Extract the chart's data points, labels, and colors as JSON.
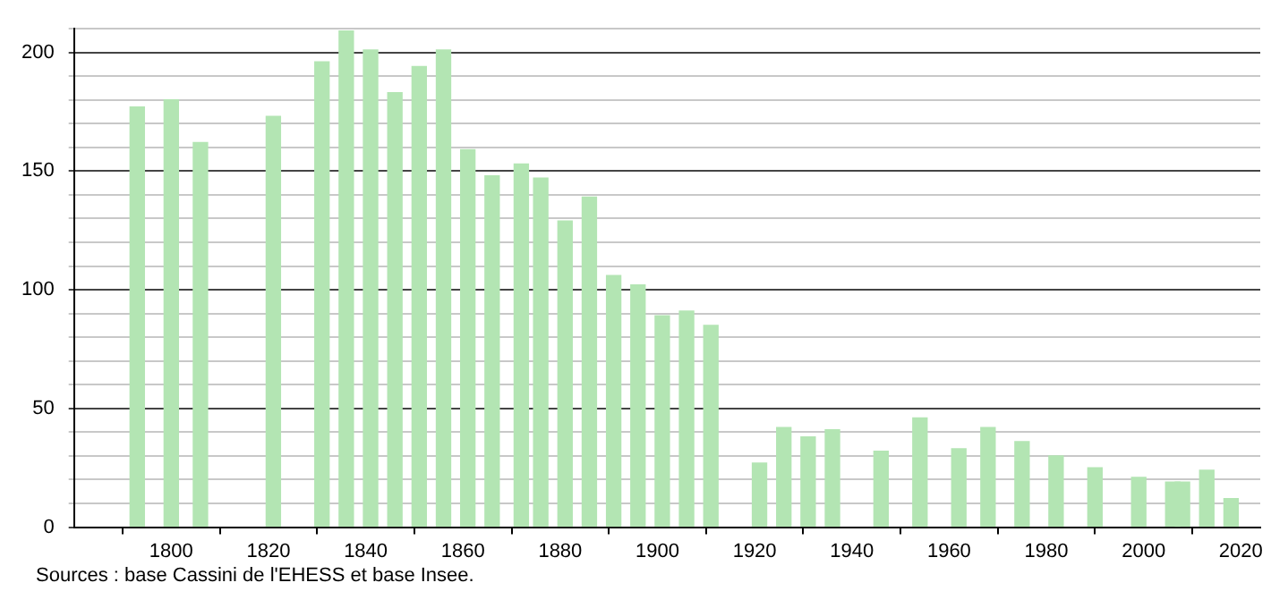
{
  "chart_data": {
    "type": "bar",
    "x": [
      1793,
      1800,
      1806,
      1821,
      1831,
      1836,
      1841,
      1846,
      1851,
      1856,
      1861,
      1866,
      1872,
      1876,
      1881,
      1886,
      1891,
      1896,
      1901,
      1906,
      1911,
      1921,
      1926,
      1931,
      1936,
      1946,
      1954,
      1962,
      1968,
      1975,
      1982,
      1990,
      1999,
      2006,
      2008,
      2013,
      2018
    ],
    "values": [
      177,
      180,
      162,
      173,
      196,
      209,
      201,
      183,
      194,
      201,
      159,
      148,
      153,
      147,
      129,
      139,
      106,
      102,
      89,
      91,
      85,
      27,
      42,
      38,
      41,
      32,
      46,
      33,
      42,
      36,
      30,
      25,
      21,
      19,
      19,
      24,
      12
    ],
    "color": "#b3e5b3",
    "xlim": [
      1780,
      2024
    ],
    "xticks": [
      1800,
      1820,
      1840,
      1860,
      1880,
      1900,
      1920,
      1940,
      1960,
      1980,
      2000,
      2020
    ],
    "ylim": [
      0,
      210
    ],
    "yticks": [
      0,
      {
        "value": 10,
        "label": null
      },
      {
        "value": 20,
        "label": null
      },
      {
        "value": 30,
        "label": null
      },
      {
        "value": 40,
        "label": null
      },
      50,
      {
        "value": 60,
        "label": null
      },
      {
        "value": 70,
        "label": null
      },
      {
        "value": 80,
        "label": null
      },
      {
        "value": 90,
        "label": null
      },
      100,
      {
        "value": 110,
        "label": null
      },
      {
        "value": 120,
        "label": null
      },
      {
        "value": 130,
        "label": null
      },
      {
        "value": 140,
        "label": null
      },
      150,
      {
        "value": 160,
        "label": null
      },
      {
        "value": 170,
        "label": null
      },
      {
        "value": 180,
        "label": null
      },
      {
        "value": 190,
        "label": null
      },
      200,
      {
        "value": 210,
        "label": null
      }
    ],
    "grid": "y",
    "legend": false,
    "annotations": [
      "Sources : base Cassini de l'EHESS et base Insee."
    ]
  }
}
